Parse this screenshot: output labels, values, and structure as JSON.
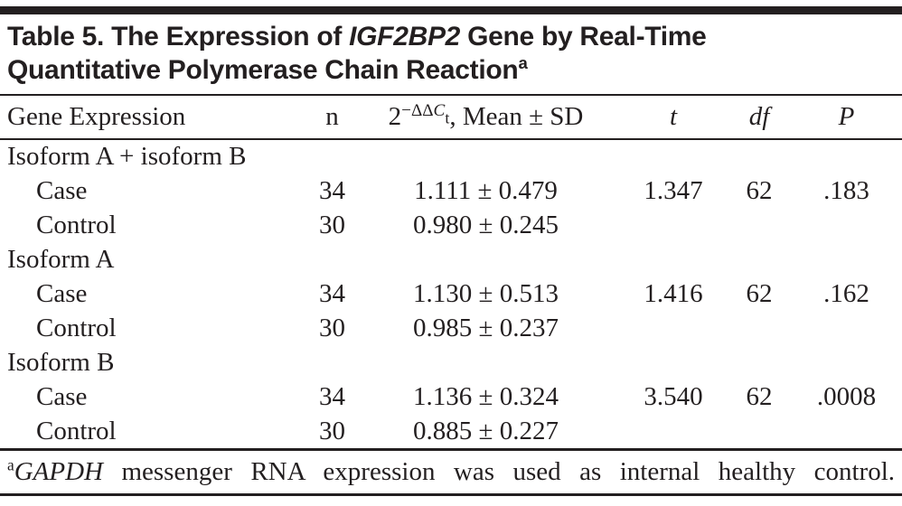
{
  "page": {
    "background": "#ffffff",
    "ink": "#231f20"
  },
  "title": {
    "line1_prefix": "Table 5. The Expression of ",
    "line1_gene": "IGF2BP2",
    "line1_suffix": " Gene by Real-Time",
    "line2": "Quantitative Polymerase Chain Reaction",
    "footnote_marker": "a"
  },
  "table": {
    "columns": {
      "gene_expression": "Gene Expression",
      "n": "n",
      "mean_sd": {
        "base": "2",
        "sup_prefix": "−ΔΔ",
        "sup_c": "C",
        "sub_t": "t",
        "rest": ", Mean ± SD"
      },
      "t": "t",
      "df": "df",
      "p": "P"
    },
    "rows": [
      {
        "label": "Isoform A + isoform B",
        "n": "",
        "mean_sd": "",
        "t": "",
        "df": "",
        "p": ""
      },
      {
        "label": "Case",
        "n": "34",
        "mean_sd": "1.111 ± 0.479",
        "t": "1.347",
        "df": "62",
        "p": ".183"
      },
      {
        "label": "Control",
        "n": "30",
        "mean_sd": "0.980 ± 0.245",
        "t": "",
        "df": "",
        "p": ""
      },
      {
        "label": "Isoform A",
        "n": "",
        "mean_sd": "",
        "t": "",
        "df": "",
        "p": ""
      },
      {
        "label": "Case",
        "n": "34",
        "mean_sd": "1.130 ± 0.513",
        "t": "1.416",
        "df": "62",
        "p": ".162"
      },
      {
        "label": "Control",
        "n": "30",
        "mean_sd": "0.985 ± 0.237",
        "t": "",
        "df": "",
        "p": ""
      },
      {
        "label": "Isoform B",
        "n": "",
        "mean_sd": "",
        "t": "",
        "df": "",
        "p": ""
      },
      {
        "label": "Case",
        "n": "34",
        "mean_sd": "1.136 ± 0.324",
        "t": "3.540",
        "df": "62",
        "p": ".0008"
      },
      {
        "label": "Control",
        "n": "30",
        "mean_sd": "0.885 ± 0.227",
        "t": "",
        "df": "",
        "p": ""
      }
    ]
  },
  "footnote": {
    "marker": "a",
    "gene": "GAPDH",
    "text": " messenger RNA expression was used as internal healthy control."
  }
}
